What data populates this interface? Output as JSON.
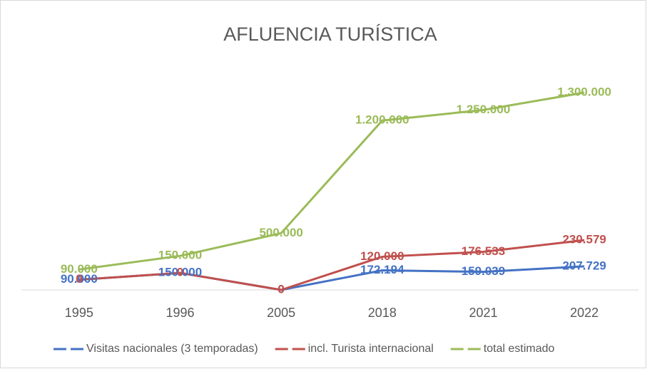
{
  "chart_data": {
    "type": "line",
    "stacked": true,
    "title": "AFLUENCIA TURÍSTICA",
    "categories": [
      "1995",
      "1996",
      "2005",
      "2018",
      "2021",
      "2022"
    ],
    "series": [
      {
        "name": "Visitas nacionales (3 temporadas)",
        "color": "#4472c4",
        "values": [
          90000,
          150000,
          0,
          172194,
          159039,
          207729
        ],
        "value_labels": [
          "90.000",
          "150.000",
          "0",
          "172.194",
          "159.039",
          "207.729"
        ]
      },
      {
        "name": "incl. Turista internacional",
        "color": "#c0504d",
        "values": [
          0,
          0,
          0,
          120000,
          176533,
          230579
        ],
        "value_labels": [
          "0",
          "0",
          "0",
          "120.000",
          "176.533",
          "230.579"
        ]
      },
      {
        "name": "total estimado",
        "color": "#9bbb59",
        "values": [
          90000,
          150000,
          500000,
          1200000,
          1250000,
          1300000
        ],
        "value_labels": [
          "90.000",
          "150.000",
          "500.000",
          "1.200.000",
          "1.250.000",
          "1.300.000"
        ]
      }
    ]
  }
}
